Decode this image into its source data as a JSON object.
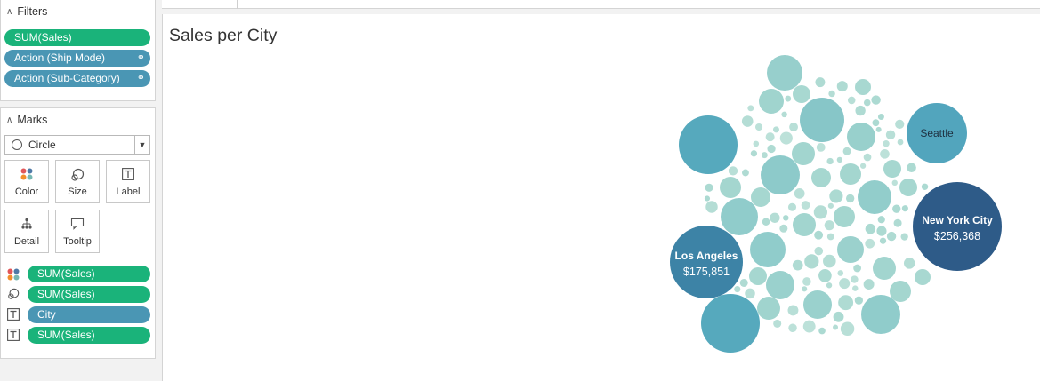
{
  "filters": {
    "header": "Filters",
    "pills": [
      {
        "label": "SUM(Sales)",
        "color": "#1ab37a"
      },
      {
        "label": "Action (Ship Mode)",
        "color": "#4a96b4"
      },
      {
        "label": "Action (Sub-Category)",
        "color": "#4a96b4"
      }
    ]
  },
  "marks": {
    "header": "Marks",
    "mark_type": "Circle",
    "cards": {
      "color": "Color",
      "size": "Size",
      "label": "Label",
      "detail": "Detail",
      "tooltip": "Tooltip"
    },
    "shelf": [
      {
        "icon": "color-icon",
        "label": "SUM(Sales)",
        "color": "#1ab37a"
      },
      {
        "icon": "size-icon",
        "label": "SUM(Sales)",
        "color": "#1ab37a"
      },
      {
        "icon": "label-icon",
        "label": "City",
        "color": "#4a96b4"
      },
      {
        "icon": "label-icon",
        "label": "SUM(Sales)",
        "color": "#1ab37a"
      }
    ]
  },
  "sheet": {
    "title": "Sales per City"
  },
  "chart_data": {
    "type": "packed-bubble",
    "title": "Sales per City",
    "color_scale": [
      "#a9dbd3",
      "#2e5b88"
    ],
    "labeled_bubbles": [
      {
        "city": "New York City",
        "value_label": "$256,368",
        "sales": 256368
      },
      {
        "city": "Los Angeles",
        "value_label": "$175,851",
        "sales": 175851
      },
      {
        "city": "Seattle",
        "value_label": "",
        "sales": 119541
      }
    ]
  }
}
